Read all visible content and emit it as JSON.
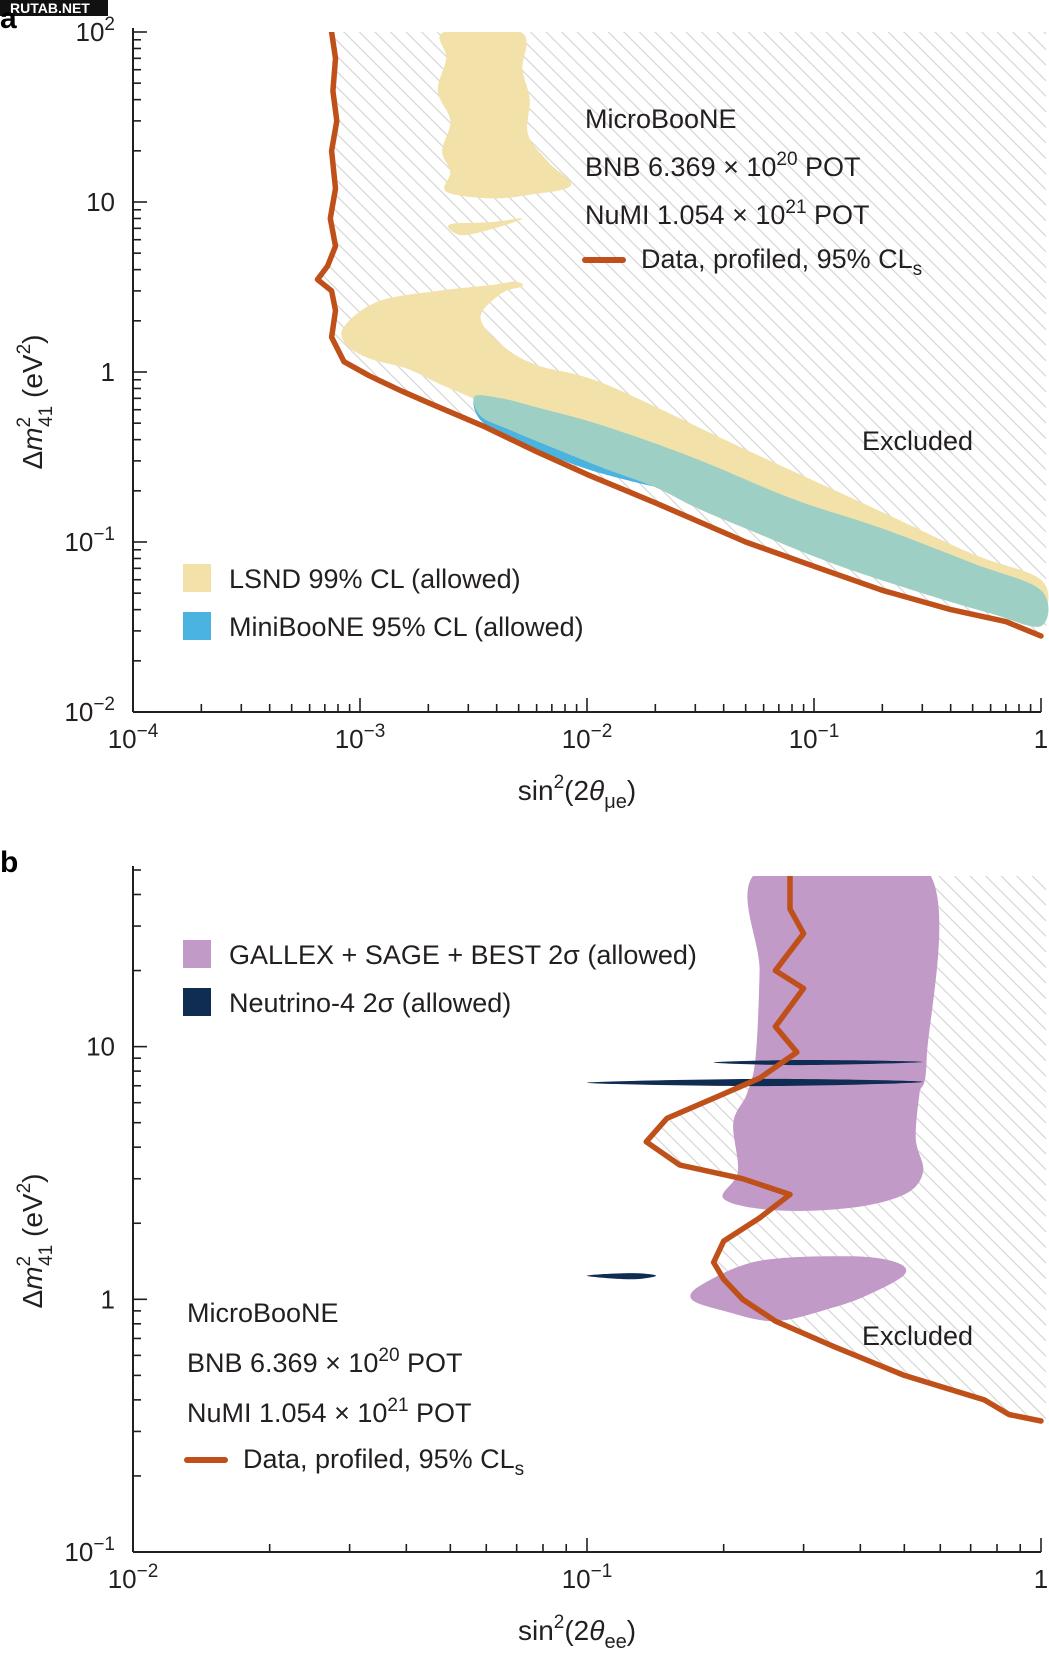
{
  "watermark": "RUTAB.NET",
  "colors": {
    "data_line": "#c0501a",
    "lsnd": "#f2e2aa",
    "miniboone": "#4ab3e0",
    "overlap": "#9ecfc5",
    "gallex": "#c29ac8",
    "neutrino4": "#0f2c52",
    "hatch": "#d2d2d2",
    "axis": "#231f20"
  },
  "chart_data": [
    {
      "panel": "a",
      "type": "line",
      "x_scale": "log",
      "y_scale": "log",
      "xlim": [
        0.0001,
        1
      ],
      "ylim": [
        0.01,
        100
      ],
      "xlabel": "sin²(2θμe)",
      "ylabel": "Δm²41 (eV²)",
      "x_ticks": [
        {
          "value": 0.0001,
          "base": "10",
          "exp": "−4"
        },
        {
          "value": 0.001,
          "base": "10",
          "exp": "−3"
        },
        {
          "value": 0.01,
          "base": "10",
          "exp": "−2"
        },
        {
          "value": 0.1,
          "base": "10",
          "exp": "−1"
        },
        {
          "value": 1,
          "base": "1",
          "exp": ""
        }
      ],
      "y_ticks": [
        {
          "value": 0.01,
          "base": "10",
          "exp": "−2"
        },
        {
          "value": 0.1,
          "base": "10",
          "exp": "−1"
        },
        {
          "value": 1,
          "base": "1",
          "exp": ""
        },
        {
          "value": 10,
          "base": "10",
          "exp": ""
        },
        {
          "value": 100,
          "base": "10",
          "exp": "2"
        }
      ],
      "annotations": {
        "experiment": "MicroBooNE",
        "bnb": {
          "prefix": "BNB 6.369 × 10",
          "exp": "20",
          "suffix": " POT"
        },
        "numi": {
          "prefix": "NuMI 1.054 × 10",
          "exp": "21",
          "suffix": " POT"
        },
        "excluded": "Excluded"
      },
      "legend": [
        {
          "label": "LSND 99% CL (allowed)",
          "color": "#f2e2aa"
        },
        {
          "label": "MiniBooNE 95% CL (allowed)",
          "color": "#4ab3e0"
        },
        {
          "label": "Data, profiled, 95% CL",
          "sub": "s",
          "color": "#c0501a"
        }
      ],
      "series": [
        {
          "name": "Data, profiled, 95% CL",
          "points": [
            [
              0.00075,
              100
            ],
            [
              0.00078,
              70
            ],
            [
              0.00076,
              45
            ],
            [
              0.00079,
              30
            ],
            [
              0.00075,
              20
            ],
            [
              0.00078,
              12
            ],
            [
              0.00074,
              8
            ],
            [
              0.00078,
              5.5
            ],
            [
              0.00072,
              4.2
            ],
            [
              0.00065,
              3.5
            ],
            [
              0.00075,
              3.0
            ],
            [
              0.00078,
              2.3
            ],
            [
              0.00075,
              1.6
            ],
            [
              0.00085,
              1.15
            ],
            [
              0.0011,
              0.95
            ],
            [
              0.0015,
              0.78
            ],
            [
              0.002,
              0.66
            ],
            [
              0.0035,
              0.48
            ],
            [
              0.006,
              0.34
            ],
            [
              0.01,
              0.25
            ],
            [
              0.02,
              0.17
            ],
            [
              0.05,
              0.1
            ],
            [
              0.1,
              0.072
            ],
            [
              0.2,
              0.052
            ],
            [
              0.4,
              0.04
            ],
            [
              0.7,
              0.034
            ],
            [
              1,
              0.028
            ]
          ]
        }
      ],
      "regions": [
        {
          "name": "LSND 99% CL (allowed)",
          "bands": [
            [
              0.0023,
              100,
              0.0051,
              13
            ],
            [
              0.0025,
              7.5,
              0.0051,
              6.3
            ],
            [
              0.00085,
              3,
              0.0045,
              1.0
            ],
            [
              0.0028,
              1,
              1,
              0.05
            ]
          ]
        },
        {
          "name": "MiniBooNE 95% CL (allowed)",
          "bands": [
            [
              0.0033,
              0.55,
              1,
              0.03
            ]
          ]
        }
      ]
    },
    {
      "panel": "b",
      "type": "line",
      "x_scale": "log",
      "y_scale": "log",
      "xlim": [
        0.01,
        1
      ],
      "ylim": [
        0.1,
        50
      ],
      "xlabel": "sin²(2θee)",
      "ylabel": "Δm²41 (eV²)",
      "x_ticks": [
        {
          "value": 0.01,
          "base": "10",
          "exp": "−2"
        },
        {
          "value": 0.1,
          "base": "10",
          "exp": "−1"
        },
        {
          "value": 1,
          "base": "1",
          "exp": ""
        }
      ],
      "y_ticks": [
        {
          "value": 0.1,
          "base": "10",
          "exp": "−1"
        },
        {
          "value": 1,
          "base": "1",
          "exp": ""
        },
        {
          "value": 10,
          "base": "10",
          "exp": ""
        }
      ],
      "annotations": {
        "experiment": "MicroBooNE",
        "bnb": {
          "prefix": "BNB 6.369 × 10",
          "exp": "20",
          "suffix": " POT"
        },
        "numi": {
          "prefix": "NuMI 1.054 × 10",
          "exp": "21",
          "suffix": " POT"
        },
        "excluded": "Excluded"
      },
      "legend": [
        {
          "label": "GALLEX + SAGE + BEST 2σ (allowed)",
          "color": "#c29ac8"
        },
        {
          "label": "Neutrino-4 2σ (allowed)",
          "color": "#0f2c52"
        },
        {
          "label": "Data, profiled, 95% CL",
          "sub": "s",
          "color": "#c0501a"
        }
      ],
      "series": [
        {
          "name": "Data, profiled, 95% CL",
          "points": [
            [
              0.28,
              50
            ],
            [
              0.28,
              35
            ],
            [
              0.3,
              28
            ],
            [
              0.26,
              20
            ],
            [
              0.3,
              17
            ],
            [
              0.26,
              12
            ],
            [
              0.29,
              9.5
            ],
            [
              0.24,
              7.5
            ],
            [
              0.2,
              6.5
            ],
            [
              0.15,
              5.2
            ],
            [
              0.135,
              4.2
            ],
            [
              0.16,
              3.4
            ],
            [
              0.22,
              3.0
            ],
            [
              0.28,
              2.6
            ],
            [
              0.24,
              2.1
            ],
            [
              0.2,
              1.7
            ],
            [
              0.19,
              1.4
            ],
            [
              0.2,
              1.2
            ],
            [
              0.22,
              1.0
            ],
            [
              0.26,
              0.82
            ],
            [
              0.35,
              0.65
            ],
            [
              0.5,
              0.5
            ],
            [
              0.75,
              0.4
            ],
            [
              0.85,
              0.35
            ],
            [
              1,
              0.33
            ]
          ]
        }
      ],
      "regions": [
        {
          "name": "GALLEX + SAGE + BEST 2σ (allowed)",
          "bands": [
            [
              0.24,
              50,
              0.56,
              2.2
            ],
            [
              0.17,
              1.5,
              0.5,
              0.8
            ]
          ]
        },
        {
          "name": "Neutrino-4 2σ (allowed)",
          "bands": [
            [
              0.2,
              8.8,
              0.55,
              8.3
            ],
            [
              0.1,
              7.4,
              0.55,
              7.0
            ],
            [
              0.1,
              1.26,
              0.14,
              1.21
            ]
          ]
        }
      ]
    }
  ]
}
